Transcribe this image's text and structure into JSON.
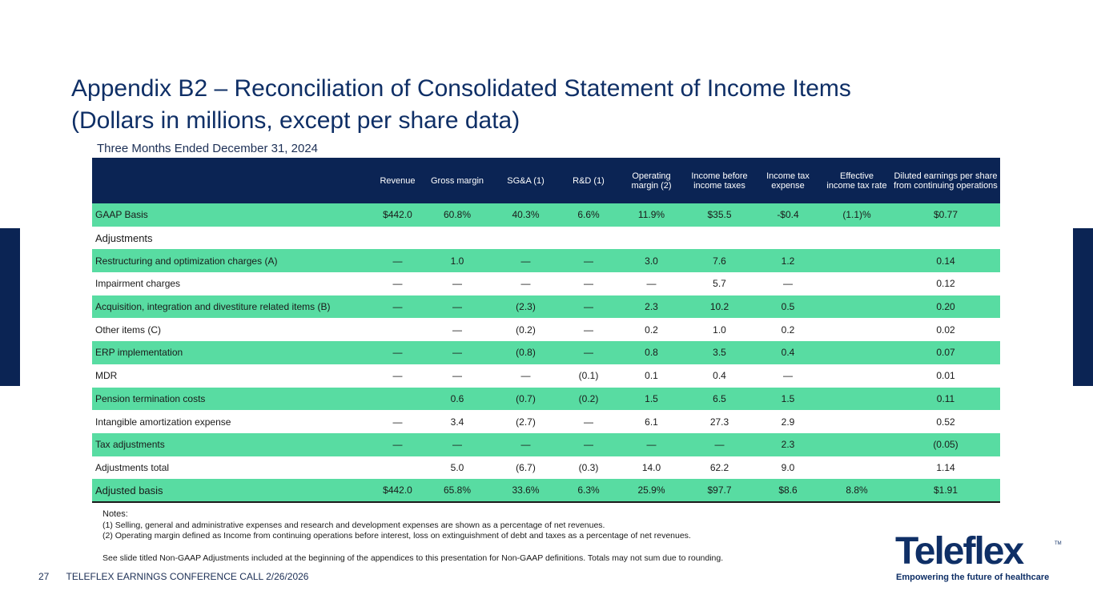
{
  "title_line1": "Appendix B2 – Reconciliation of Consolidated Statement of Income Items",
  "title_line2": "(Dollars in millions, except per share data)",
  "subtitle": "Three Months Ended December 31, 2024",
  "columns": [
    "",
    "Revenue",
    "Gross margin",
    "SG&A (1)",
    "R&D (1)",
    "Operating margin (2)",
    "Income before income taxes",
    "Income tax expense",
    "Effective income tax rate",
    "Diluted earnings per share from continuing operations"
  ],
  "rows": [
    {
      "label": "GAAP Basis",
      "cells": [
        "$442.0",
        "60.8%",
        "40.3%",
        "6.6%",
        "11.9%",
        "$35.5",
        "-$0.4",
        "(1.1)%",
        "$0.77"
      ]
    },
    {
      "label": "Adjustments",
      "cells": [
        "",
        "",
        "",
        "",
        "",
        "",
        "",
        "",
        ""
      ]
    },
    {
      "label": "Restructuring and optimization charges (A)",
      "cells": [
        "—",
        "1.0",
        "—",
        "—",
        "3.0",
        "7.6",
        "1.2",
        "",
        "0.14"
      ]
    },
    {
      "label": "Impairment charges",
      "cells": [
        "—",
        "—",
        "—",
        "—",
        "—",
        "5.7",
        "—",
        "",
        "0.12"
      ]
    },
    {
      "label": "Acquisition, integration and divestiture related items (B)",
      "cells": [
        "—",
        "—",
        "(2.3)",
        "—",
        "2.3",
        "10.2",
        "0.5",
        "",
        "0.20"
      ]
    },
    {
      "label": "Other items (C)",
      "cells": [
        "",
        "—",
        "(0.2)",
        "—",
        "0.2",
        "1.0",
        "0.2",
        "",
        "0.02"
      ]
    },
    {
      "label": "ERP implementation",
      "cells": [
        "—",
        "—",
        "(0.8)",
        "—",
        "0.8",
        "3.5",
        "0.4",
        "",
        "0.07"
      ]
    },
    {
      "label": "MDR",
      "cells": [
        "—",
        "—",
        "—",
        "(0.1)",
        "0.1",
        "0.4",
        "—",
        "",
        "0.01"
      ]
    },
    {
      "label": "Pension termination costs",
      "cells": [
        "",
        "0.6",
        "(0.7)",
        "(0.2)",
        "1.5",
        "6.5",
        "1.5",
        "",
        "0.11"
      ]
    },
    {
      "label": "Intangible amortization expense",
      "cells": [
        "—",
        "3.4",
        "(2.7)",
        "—",
        "6.1",
        "27.3",
        "2.9",
        "",
        "0.52"
      ]
    },
    {
      "label": "Tax adjustments",
      "cells": [
        "—",
        "—",
        "—",
        "—",
        "—",
        "—",
        "2.3",
        "",
        "(0.05)"
      ]
    },
    {
      "label": "Adjustments total",
      "cells": [
        "",
        "5.0",
        "(6.7)",
        "(0.3)",
        "14.0",
        "62.2",
        "9.0",
        "",
        "1.14"
      ]
    },
    {
      "label": "Adjusted basis",
      "cells": [
        "$442.0",
        "65.8%",
        "33.6%",
        "6.3%",
        "25.9%",
        "$97.7",
        "$8.6",
        "8.8%",
        "$1.91"
      ]
    }
  ],
  "notes": {
    "heading": "Notes:",
    "note1": "(1) Selling, general and administrative expenses and research and development expenses are shown as a percentage of net revenues.",
    "note2": "(2) Operating margin defined as Income from continuing operations before interest, loss on extinguishment of debt and taxes as a percentage of net revenues.",
    "note3": "See slide titled Non-GAAP Adjustments included at the beginning of the appendices to this presentation for Non-GAAP definitions. Totals may not sum due to rounding."
  },
  "footer": {
    "page_number": "27",
    "text": "TELEFLEX EARNINGS CONFERENCE CALL 2/26/2026"
  },
  "logo": {
    "wordmark": "Teleflex",
    "trademark": "TM",
    "tagline": "Empowering the future of healthcare"
  },
  "colors": {
    "navy": "#0b2454",
    "green_row": "#58dca2",
    "title": "#0f2f66"
  }
}
